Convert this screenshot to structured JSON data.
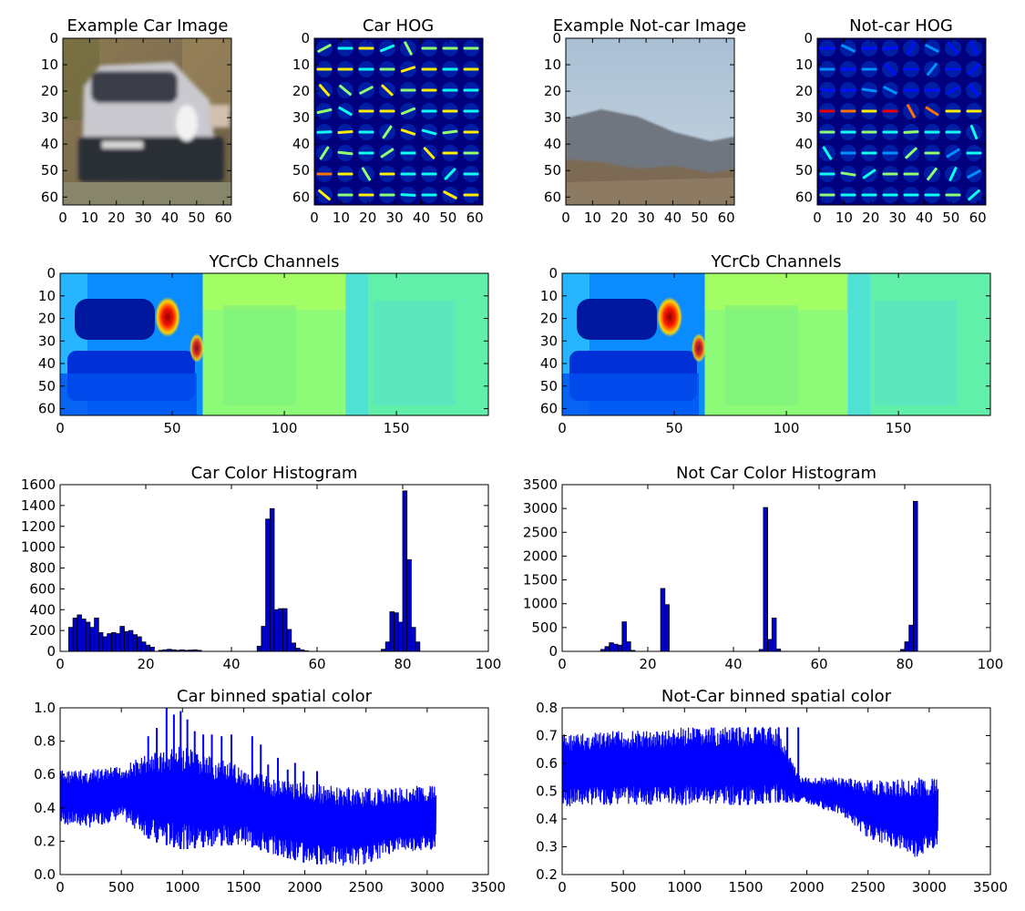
{
  "colors": {
    "bar_fill": "#0000cc",
    "bar_edge": "#000000",
    "line": "#0000ff",
    "jet_low": "#00007f",
    "jet_high": "#7f0000"
  },
  "chart_data": [
    {
      "type": "heatmap",
      "title": "Example Car Image",
      "xticks": [
        "0",
        "10",
        "20",
        "30",
        "40",
        "50",
        "60"
      ],
      "yticks": [
        "0",
        "10",
        "20",
        "30",
        "40",
        "50",
        "60"
      ],
      "xlim": [
        0,
        63
      ],
      "ylim": [
        63,
        0
      ],
      "content": "small photo of rear of a grey car"
    },
    {
      "type": "heatmap",
      "title": "Car HOG",
      "xticks": [
        "0",
        "10",
        "20",
        "30",
        "40",
        "50",
        "60"
      ],
      "yticks": [
        "0",
        "10",
        "20",
        "30",
        "40",
        "50",
        "60"
      ],
      "xlim": [
        0,
        63
      ],
      "ylim": [
        63,
        0
      ],
      "colormap": "jet"
    },
    {
      "type": "heatmap",
      "title": "Example Not-car Image",
      "xticks": [
        "0",
        "10",
        "20",
        "30",
        "40",
        "50",
        "60"
      ],
      "yticks": [
        "0",
        "10",
        "20",
        "30",
        "40",
        "50",
        "60"
      ],
      "xlim": [
        0,
        63
      ],
      "ylim": [
        63,
        0
      ],
      "content": "sky, hills and bushes"
    },
    {
      "type": "heatmap",
      "title": "Not-car HOG",
      "xticks": [
        "0",
        "10",
        "20",
        "30",
        "40",
        "50",
        "60"
      ],
      "yticks": [
        "0",
        "10",
        "20",
        "30",
        "40",
        "50",
        "60"
      ],
      "xlim": [
        0,
        63
      ],
      "ylim": [
        63,
        0
      ],
      "colormap": "jet"
    },
    {
      "type": "heatmap",
      "title": "YCrCb Channels",
      "xticks": [
        "0",
        "50",
        "100",
        "150"
      ],
      "yticks": [
        "0",
        "10",
        "20",
        "30",
        "40",
        "50",
        "60"
      ],
      "xlim": [
        0,
        191
      ],
      "ylim": [
        63,
        0
      ],
      "colormap": "jet"
    },
    {
      "type": "heatmap",
      "title": "YCrCb Channels",
      "xticks": [
        "0",
        "50",
        "100",
        "150"
      ],
      "yticks": [
        "0",
        "10",
        "20",
        "30",
        "40",
        "50",
        "60"
      ],
      "xlim": [
        0,
        191
      ],
      "ylim": [
        63,
        0
      ],
      "colormap": "jet"
    },
    {
      "type": "bar",
      "title": "Car Color Histogram",
      "xlim": [
        0,
        100
      ],
      "ylim": [
        0,
        1600
      ],
      "xticks": [
        "0",
        "20",
        "40",
        "60",
        "80",
        "100"
      ],
      "yticks": [
        "0",
        "200",
        "400",
        "600",
        "800",
        "1000",
        "1200",
        "1400",
        "1600"
      ],
      "x": [
        2,
        3,
        4,
        5,
        6,
        7,
        8,
        9,
        10,
        11,
        12,
        13,
        14,
        15,
        16,
        17,
        18,
        19,
        20,
        21,
        23,
        24,
        25,
        26,
        27,
        28,
        29,
        30,
        31,
        32,
        46,
        47,
        48,
        49,
        50,
        51,
        52,
        53,
        54,
        55,
        56,
        57,
        75,
        76,
        77,
        78,
        79,
        80,
        81,
        82,
        83
      ],
      "values": [
        230,
        320,
        350,
        310,
        280,
        230,
        320,
        180,
        140,
        170,
        180,
        170,
        240,
        190,
        200,
        160,
        140,
        90,
        60,
        40,
        10,
        15,
        20,
        15,
        10,
        15,
        10,
        12,
        15,
        10,
        50,
        240,
        1270,
        1370,
        400,
        410,
        410,
        210,
        80,
        30,
        15,
        5,
        20,
        90,
        380,
        370,
        280,
        1540,
        880,
        230,
        90
      ]
    },
    {
      "type": "bar",
      "title": "Not Car Color Histogram",
      "xlim": [
        0,
        100
      ],
      "ylim": [
        0,
        3500
      ],
      "xticks": [
        "0",
        "20",
        "40",
        "60",
        "80",
        "100"
      ],
      "yticks": [
        "0",
        "500",
        "1000",
        "1500",
        "2000",
        "2500",
        "3000",
        "3500"
      ],
      "x": [
        9,
        10,
        11,
        12,
        13,
        14,
        15,
        16,
        23,
        24,
        46,
        47,
        48,
        49,
        50,
        79,
        80,
        81,
        82
      ],
      "values": [
        40,
        100,
        180,
        150,
        130,
        620,
        200,
        20,
        1320,
        980,
        40,
        3020,
        250,
        700,
        50,
        40,
        200,
        550,
        3150
      ]
    },
    {
      "type": "line",
      "title": "Car binned spatial color",
      "xlim": [
        0,
        3500
      ],
      "ylim": [
        0.0,
        1.0
      ],
      "xticks": [
        "0",
        "500",
        "1000",
        "1500",
        "2000",
        "2500",
        "3000",
        "3500"
      ],
      "yticks": [
        "0.0",
        "0.2",
        "0.4",
        "0.6",
        "0.8",
        "1.0"
      ],
      "n_points": 3072,
      "envelope_x": [
        0,
        250,
        500,
        750,
        1000,
        1250,
        1500,
        1750,
        2000,
        2250,
        2500,
        2750,
        3000,
        3072
      ],
      "envelope_low": [
        0.3,
        0.28,
        0.33,
        0.2,
        0.15,
        0.17,
        0.18,
        0.12,
        0.07,
        0.05,
        0.06,
        0.14,
        0.14,
        0.15
      ],
      "envelope_high": [
        0.63,
        0.63,
        0.65,
        0.74,
        0.77,
        0.7,
        0.65,
        0.58,
        0.56,
        0.53,
        0.52,
        0.52,
        0.54,
        0.54
      ],
      "peaks_x": [
        720,
        790,
        870,
        930,
        985,
        1040,
        1100,
        1170,
        1240,
        1320,
        1400,
        1570,
        1640,
        1700,
        1780,
        1860,
        1920,
        1990,
        2100
      ],
      "peaks_y": [
        0.83,
        0.88,
        1.0,
        0.96,
        0.98,
        0.93,
        0.86,
        0.84,
        0.84,
        0.83,
        0.84,
        0.83,
        0.78,
        0.66,
        0.7,
        0.63,
        0.67,
        0.62,
        0.62
      ]
    },
    {
      "type": "line",
      "title": "Not-Car binned spatial color",
      "xlim": [
        0,
        3500
      ],
      "ylim": [
        0.2,
        0.8
      ],
      "xticks": [
        "0",
        "500",
        "1000",
        "1500",
        "2000",
        "2500",
        "3000",
        "3500"
      ],
      "yticks": [
        "0.2",
        "0.3",
        "0.4",
        "0.5",
        "0.6",
        "0.7",
        "0.8"
      ],
      "n_points": 3072,
      "envelope_x": [
        0,
        250,
        500,
        750,
        1000,
        1250,
        1500,
        1750,
        1950,
        2100,
        2300,
        2500,
        2700,
        2900,
        3072
      ],
      "envelope_low": [
        0.44,
        0.45,
        0.45,
        0.45,
        0.45,
        0.45,
        0.45,
        0.46,
        0.46,
        0.44,
        0.41,
        0.33,
        0.3,
        0.26,
        0.3
      ],
      "envelope_high": [
        0.71,
        0.71,
        0.72,
        0.72,
        0.73,
        0.73,
        0.73,
        0.73,
        0.55,
        0.55,
        0.55,
        0.54,
        0.54,
        0.55,
        0.55
      ],
      "peaks_x": [
        1450,
        1520,
        1580,
        1640,
        1700,
        1770,
        1840,
        1930
      ],
      "peaks_y": [
        0.73,
        0.73,
        0.73,
        0.73,
        0.73,
        0.73,
        0.73,
        0.73
      ]
    }
  ]
}
